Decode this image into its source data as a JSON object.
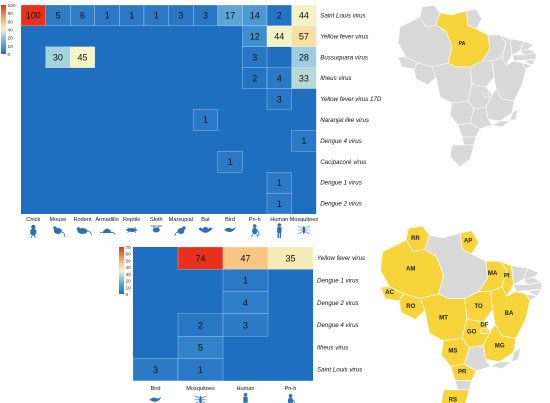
{
  "chart_data": [
    {
      "type": "heatmap",
      "title": "",
      "columns": [
        "Chick",
        "Mouse",
        "Rodent",
        "Armadillo",
        "Reptile",
        "Sloth",
        "Marsupial",
        "Bat",
        "Bird",
        "Pn-h",
        "Human",
        "Mosquitoes"
      ],
      "rows": [
        "Saint Louis virus",
        "Yellow fever virus",
        "Bussuquara virus",
        "Ilheus virus",
        "Yellow fever virus 17D",
        "Naranjal like virus",
        "Dengue 4 virus",
        "Cacipacoré virus",
        "Dengue 1 virus",
        "Dengue 2 virus"
      ],
      "cells": [
        {
          "row": 0,
          "col": 0,
          "value": 100
        },
        {
          "row": 0,
          "col": 1,
          "value": 5
        },
        {
          "row": 0,
          "col": 2,
          "value": 6
        },
        {
          "row": 0,
          "col": 3,
          "value": 1
        },
        {
          "row": 0,
          "col": 4,
          "value": 1
        },
        {
          "row": 0,
          "col": 5,
          "value": 1
        },
        {
          "row": 0,
          "col": 6,
          "value": 3
        },
        {
          "row": 0,
          "col": 7,
          "value": 3
        },
        {
          "row": 0,
          "col": 8,
          "value": 17
        },
        {
          "row": 0,
          "col": 9,
          "value": 14
        },
        {
          "row": 0,
          "col": 10,
          "value": 2
        },
        {
          "row": 0,
          "col": 11,
          "value": 44
        },
        {
          "row": 1,
          "col": 9,
          "value": 12
        },
        {
          "row": 1,
          "col": 10,
          "value": 44
        },
        {
          "row": 1,
          "col": 11,
          "value": 57
        },
        {
          "row": 2,
          "col": 1,
          "value": 30
        },
        {
          "row": 2,
          "col": 2,
          "value": 45
        },
        {
          "row": 2,
          "col": 9,
          "value": 3
        },
        {
          "row": 2,
          "col": 11,
          "value": 28
        },
        {
          "row": 3,
          "col": 9,
          "value": 2
        },
        {
          "row": 3,
          "col": 10,
          "value": 4
        },
        {
          "row": 3,
          "col": 11,
          "value": 33
        },
        {
          "row": 4,
          "col": 10,
          "value": 3
        },
        {
          "row": 5,
          "col": 7,
          "value": 1
        },
        {
          "row": 6,
          "col": 11,
          "value": 1
        },
        {
          "row": 7,
          "col": 8,
          "value": 1
        },
        {
          "row": 8,
          "col": 10,
          "value": 1
        },
        {
          "row": 9,
          "col": 10,
          "value": 1
        }
      ],
      "colorbar": {
        "min": 0,
        "max": 100,
        "ticks": [
          "100",
          "80",
          "60",
          "40",
          "20",
          "10",
          "0"
        ]
      },
      "colors": {
        "low": "#1f6fc0",
        "high": "#e8301c"
      }
    },
    {
      "type": "heatmap",
      "title": "",
      "columns": [
        "Bird",
        "Mosquitoes",
        "Human",
        "Pn-h"
      ],
      "rows": [
        "Yellow fever virus",
        "Dengue 1 virus",
        "Dengue 2 virus",
        "Dengue 4 virus",
        "Ilheus virus",
        "Saint Louis virus"
      ],
      "cells": [
        {
          "row": 0,
          "col": 1,
          "value": 74
        },
        {
          "row": 0,
          "col": 2,
          "value": 47
        },
        {
          "row": 0,
          "col": 3,
          "value": 35
        },
        {
          "row": 1,
          "col": 2,
          "value": 1
        },
        {
          "row": 2,
          "col": 2,
          "value": 4
        },
        {
          "row": 3,
          "col": 1,
          "value": 2
        },
        {
          "row": 3,
          "col": 2,
          "value": 3
        },
        {
          "row": 4,
          "col": 1,
          "value": 5
        },
        {
          "row": 5,
          "col": 0,
          "value": 3
        },
        {
          "row": 5,
          "col": 1,
          "value": 1
        }
      ],
      "colorbar": {
        "min": 0,
        "max": 70,
        "ticks": [
          "70",
          "60",
          "50",
          "40",
          "30",
          "20",
          "10",
          "0"
        ]
      },
      "colors": {
        "low": "#1f6fc0",
        "high": "#e8301c"
      }
    }
  ],
  "maps": {
    "top": {
      "highlighted": [
        "PA"
      ]
    },
    "bottom": {
      "highlighted": [
        "RR",
        "AP",
        "AM",
        "AC",
        "RO",
        "MA",
        "PI",
        "TO",
        "BA",
        "MT",
        "GO",
        "DF",
        "MG",
        "MS",
        "PR",
        "RS"
      ]
    }
  },
  "colors": {
    "map_gray": "#d9d9d9",
    "map_yellow": "#f7d43a",
    "map_border": "#ffffff",
    "icon_blue": "#2f6fb4"
  }
}
